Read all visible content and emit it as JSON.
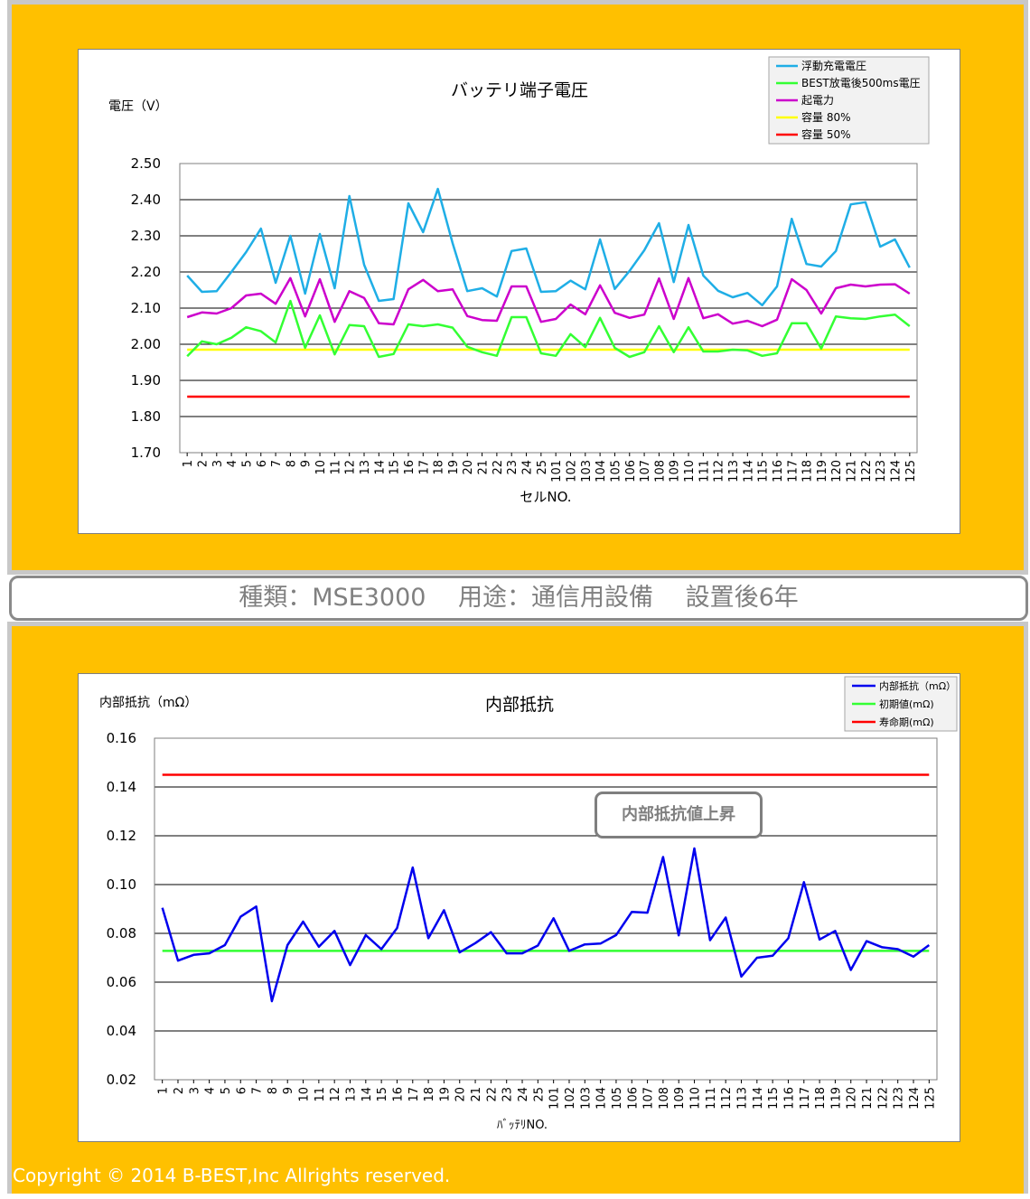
{
  "banner_text": "種類：MSE3000　 用途：通信用設備　 設置後6年",
  "copyright": "Copyright © 2014 B-BEST,Inc Allrights reserved.",
  "callout_text": "内部抵抗値上昇",
  "colors": {
    "panel_bg": "#FFC000",
    "float_voltage": "#1FAEE6",
    "best_discharge": "#33FF33",
    "emf": "#CC00CC",
    "capacity_80": "#FFFF00",
    "capacity_50": "#FF0000",
    "internal_resistance": "#0000EE",
    "initial_value": "#33FF33",
    "end_of_life": "#FF0000"
  },
  "chart_data": [
    {
      "type": "line",
      "title": "バッテリ端子電圧",
      "ylabel": "電圧（V）",
      "xlabel": "セルNO.",
      "ylim": [
        1.7,
        2.5
      ],
      "yticks": [
        "2.50",
        "2.40",
        "2.30",
        "2.20",
        "2.10",
        "2.00",
        "1.90",
        "1.80",
        "1.70"
      ],
      "grid": true,
      "legend_position": "top-right",
      "categories": [
        "1",
        "2",
        "3",
        "4",
        "5",
        "6",
        "7",
        "8",
        "9",
        "10",
        "11",
        "12",
        "13",
        "14",
        "15",
        "16",
        "17",
        "18",
        "19",
        "20",
        "21",
        "22",
        "23",
        "24",
        "25",
        "101",
        "102",
        "103",
        "104",
        "105",
        "106",
        "107",
        "108",
        "109",
        "110",
        "111",
        "112",
        "113",
        "114",
        "115",
        "116",
        "117",
        "118",
        "119",
        "120",
        "121",
        "122",
        "123",
        "124",
        "125"
      ],
      "series": [
        {
          "name": "浮動充電電圧",
          "color_key": "float_voltage",
          "values": [
            2.19,
            2.145,
            2.147,
            2.2,
            2.255,
            2.32,
            2.17,
            2.3,
            2.14,
            2.305,
            2.155,
            2.41,
            2.22,
            2.12,
            2.125,
            2.39,
            2.31,
            2.43,
            2.28,
            2.147,
            2.155,
            2.132,
            2.258,
            2.265,
            2.145,
            2.147,
            2.176,
            2.152,
            2.29,
            2.153,
            2.203,
            2.26,
            2.335,
            2.172,
            2.33,
            2.19,
            2.148,
            2.13,
            2.142,
            2.108,
            2.16,
            2.347,
            2.222,
            2.215,
            2.258,
            2.387,
            2.393,
            2.27,
            2.29,
            2.212
          ]
        },
        {
          "name": "BEST放電後500ms電圧",
          "color_key": "best_discharge",
          "values": [
            1.967,
            2.008,
            2.0,
            2.018,
            2.047,
            2.036,
            2.005,
            2.12,
            1.99,
            2.08,
            1.972,
            2.053,
            2.05,
            1.965,
            1.973,
            2.055,
            2.05,
            2.055,
            2.046,
            1.993,
            1.978,
            1.968,
            2.075,
            2.075,
            1.975,
            1.968,
            2.028,
            1.992,
            2.073,
            1.99,
            1.965,
            1.978,
            2.05,
            1.978,
            2.047,
            1.98,
            1.98,
            1.985,
            1.983,
            1.968,
            1.975,
            2.058,
            2.058,
            1.988,
            2.077,
            2.072,
            2.07,
            2.077,
            2.082,
            2.05
          ]
        },
        {
          "name": "起電力",
          "color_key": "emf",
          "values": [
            2.075,
            2.088,
            2.085,
            2.1,
            2.135,
            2.14,
            2.112,
            2.183,
            2.077,
            2.18,
            2.062,
            2.147,
            2.128,
            2.058,
            2.055,
            2.152,
            2.178,
            2.147,
            2.152,
            2.078,
            2.067,
            2.065,
            2.16,
            2.16,
            2.062,
            2.07,
            2.11,
            2.083,
            2.163,
            2.087,
            2.073,
            2.082,
            2.182,
            2.07,
            2.183,
            2.072,
            2.083,
            2.057,
            2.065,
            2.05,
            2.068,
            2.18,
            2.15,
            2.085,
            2.155,
            2.165,
            2.16,
            2.165,
            2.166,
            2.14
          ]
        },
        {
          "name": "容量 80%",
          "color_key": "capacity_80",
          "values": [
            1.985,
            1.985,
            1.985,
            1.985,
            1.985,
            1.985,
            1.985,
            1.985,
            1.985,
            1.985,
            1.985,
            1.985,
            1.985,
            1.985,
            1.985,
            1.985,
            1.985,
            1.985,
            1.985,
            1.985,
            1.985,
            1.985,
            1.985,
            1.985,
            1.985,
            1.985,
            1.985,
            1.985,
            1.985,
            1.985,
            1.985,
            1.985,
            1.985,
            1.985,
            1.985,
            1.985,
            1.985,
            1.985,
            1.985,
            1.985,
            1.985,
            1.985,
            1.985,
            1.985,
            1.985,
            1.985,
            1.985,
            1.985,
            1.985,
            1.985
          ]
        },
        {
          "name": "容量 50%",
          "color_key": "capacity_50",
          "values": [
            1.855,
            1.855,
            1.855,
            1.855,
            1.855,
            1.855,
            1.855,
            1.855,
            1.855,
            1.855,
            1.855,
            1.855,
            1.855,
            1.855,
            1.855,
            1.855,
            1.855,
            1.855,
            1.855,
            1.855,
            1.855,
            1.855,
            1.855,
            1.855,
            1.855,
            1.855,
            1.855,
            1.855,
            1.855,
            1.855,
            1.855,
            1.855,
            1.855,
            1.855,
            1.855,
            1.855,
            1.855,
            1.855,
            1.855,
            1.855,
            1.855,
            1.855,
            1.855,
            1.855,
            1.855,
            1.855,
            1.855,
            1.855,
            1.855,
            1.855
          ]
        }
      ]
    },
    {
      "type": "line",
      "title": "内部抵抗",
      "ylabel": "内部抵抗（mΩ）",
      "xlabel": "ﾊﾞｯﾃﾘNO.",
      "ylim": [
        0.02,
        0.16
      ],
      "yticks": [
        "0.16",
        "0.14",
        "0.12",
        "0.10",
        "0.08",
        "0.06",
        "0.04",
        "0.02"
      ],
      "grid": true,
      "legend_position": "top-right",
      "categories": [
        "1",
        "2",
        "3",
        "4",
        "5",
        "6",
        "7",
        "8",
        "9",
        "10",
        "11",
        "12",
        "13",
        "14",
        "15",
        "16",
        "17",
        "18",
        "19",
        "20",
        "21",
        "22",
        "23",
        "24",
        "25",
        "101",
        "102",
        "103",
        "104",
        "105",
        "106",
        "107",
        "108",
        "109",
        "110",
        "111",
        "112",
        "113",
        "114",
        "115",
        "116",
        "117",
        "118",
        "119",
        "120",
        "121",
        "122",
        "123",
        "124",
        "125"
      ],
      "series": [
        {
          "name": "内部抵抗（mΩ）",
          "color_key": "internal_resistance",
          "values": [
            0.0905,
            0.0688,
            0.0712,
            0.0718,
            0.0752,
            0.0868,
            0.091,
            0.0522,
            0.0752,
            0.0848,
            0.0745,
            0.081,
            0.067,
            0.0793,
            0.0735,
            0.0822,
            0.107,
            0.078,
            0.0895,
            0.0722,
            0.076,
            0.0805,
            0.0718,
            0.0718,
            0.075,
            0.0862,
            0.0728,
            0.0755,
            0.0758,
            0.0793,
            0.0888,
            0.0885,
            0.1113,
            0.0792,
            0.1148,
            0.0772,
            0.0865,
            0.0623,
            0.07,
            0.0708,
            0.078,
            0.101,
            0.0775,
            0.081,
            0.065,
            0.0768,
            0.0743,
            0.0735,
            0.0705,
            0.0752
          ]
        },
        {
          "name": "初期値(mΩ)",
          "color_key": "initial_value",
          "values": [
            0.0728,
            0.0728,
            0.0728,
            0.0728,
            0.0728,
            0.0728,
            0.0728,
            0.0728,
            0.0728,
            0.0728,
            0.0728,
            0.0728,
            0.0728,
            0.0728,
            0.0728,
            0.0728,
            0.0728,
            0.0728,
            0.0728,
            0.0728,
            0.0728,
            0.0728,
            0.0728,
            0.0728,
            0.0728,
            0.0728,
            0.0728,
            0.0728,
            0.0728,
            0.0728,
            0.0728,
            0.0728,
            0.0728,
            0.0728,
            0.0728,
            0.0728,
            0.0728,
            0.0728,
            0.0728,
            0.0728,
            0.0728,
            0.0728,
            0.0728,
            0.0728,
            0.0728,
            0.0728,
            0.0728,
            0.0728,
            0.0728,
            0.0728
          ]
        },
        {
          "name": "寿命期(mΩ)",
          "color_key": "end_of_life",
          "values": [
            0.145,
            0.145,
            0.145,
            0.145,
            0.145,
            0.145,
            0.145,
            0.145,
            0.145,
            0.145,
            0.145,
            0.145,
            0.145,
            0.145,
            0.145,
            0.145,
            0.145,
            0.145,
            0.145,
            0.145,
            0.145,
            0.145,
            0.145,
            0.145,
            0.145,
            0.145,
            0.145,
            0.145,
            0.145,
            0.145,
            0.145,
            0.145,
            0.145,
            0.145,
            0.145,
            0.145,
            0.145,
            0.145,
            0.145,
            0.145,
            0.145,
            0.145,
            0.145,
            0.145,
            0.145,
            0.145,
            0.145,
            0.145,
            0.145,
            0.145
          ]
        }
      ]
    }
  ]
}
